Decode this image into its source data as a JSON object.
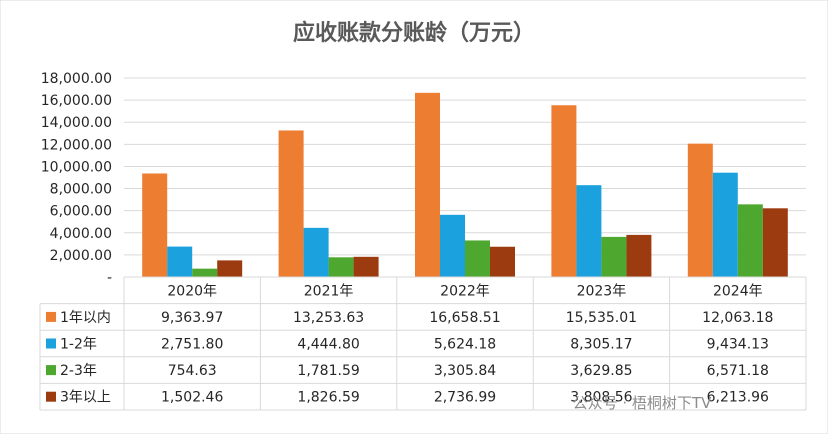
{
  "chart_data": {
    "type": "bar",
    "title": "应收账款分账龄（万元）",
    "categories": [
      "2020年",
      "2021年",
      "2022年",
      "2023年",
      "2024年"
    ],
    "series": [
      {
        "name": "1年以内",
        "color": "#ED7D31",
        "values": [
          9363.97,
          13253.63,
          16658.51,
          15535.01,
          12063.18
        ],
        "labels": [
          "9,363.97",
          "13,253.63",
          "16,658.51",
          "15,535.01",
          "12,063.18"
        ]
      },
      {
        "name": "1-2年",
        "color": "#1BA1DE",
        "values": [
          2751.8,
          4444.8,
          5624.18,
          8305.17,
          9434.13
        ],
        "labels": [
          "2,751.80",
          "4,444.80",
          "5,624.18",
          "8,305.17",
          "9,434.13"
        ]
      },
      {
        "name": "2-3年",
        "color": "#4EA72E",
        "values": [
          754.63,
          1781.59,
          3305.84,
          3629.85,
          6571.18
        ],
        "labels": [
          "754.63",
          "1,781.59",
          "3,305.84",
          "3,629.85",
          "6,571.18"
        ]
      },
      {
        "name": "3年以上",
        "color": "#9C3B10",
        "values": [
          1502.46,
          1826.59,
          2736.99,
          3808.56,
          6213.96
        ],
        "labels": [
          "1,502.46",
          "1,826.59",
          "2,736.99",
          "3,808.56",
          "6,213.96"
        ]
      }
    ],
    "ylim": [
      0,
      18000
    ],
    "yticks": [
      0,
      2000,
      4000,
      6000,
      8000,
      10000,
      12000,
      14000,
      16000,
      18000
    ],
    "ytick_labels": [
      "-",
      "2,000.00",
      "4,000.00",
      "6,000.00",
      "8,000.00",
      "10,000.00",
      "12,000.00",
      "14,000.00",
      "16,000.00",
      "18,000.00"
    ],
    "grid": true,
    "legend": "data-table"
  },
  "watermark": "公众号 · 梧桐树下TV"
}
